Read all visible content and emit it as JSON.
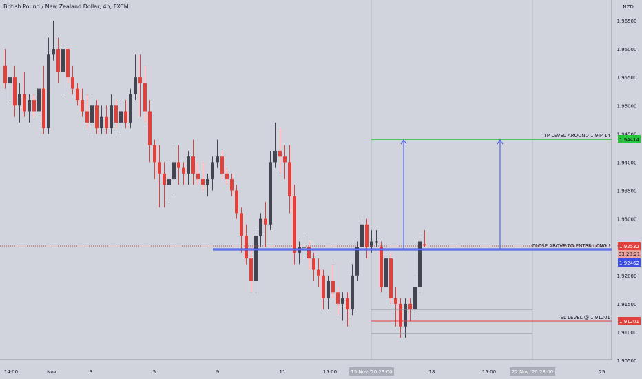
{
  "header": {
    "symbol_title": "British Pound / New Zealand Dollar, 4h, FXCM"
  },
  "price_axis": {
    "currency": "NZD",
    "labels": [
      "1.96500",
      "1.96000",
      "1.95500",
      "1.95000",
      "1.94500",
      "1.94000",
      "1.93500",
      "1.93000",
      "1.92500",
      "1.92000",
      "1.91500",
      "1.91000",
      "1.90500"
    ]
  },
  "time_axis": {
    "labels": [
      "14:00",
      "Nov",
      "3",
      "5",
      "9",
      "11",
      "15:00",
      "16",
      "18",
      "15:00",
      "23",
      "25"
    ],
    "crosshair_labels": [
      "15 Nov '20  23:00",
      "22 Nov '20  23:00"
    ]
  },
  "annotations": {
    "tp_label": "TP LEVEL AROUND 1.94414",
    "entry_label": "CLOSE ABOVE TO ENTER LONG !",
    "sl_label": "SL LEVEL @ 1.91201"
  },
  "price_tags": {
    "tp": "1.94414",
    "current": "1.92532",
    "countdown": "03:28:21",
    "entry": "1.92462",
    "sl": "1.91201"
  },
  "colors": {
    "background": "#d1d4dc",
    "up_candle": "#434651",
    "down_candle": "#e0413a",
    "tp_line": "#26c43a",
    "entry_line": "#3b4fe6",
    "sl_line": "#e0413a",
    "arrow": "#3b4fe6"
  },
  "chart_data": {
    "type": "candlestick",
    "interval": "4h",
    "y_range": [
      1.9045,
      1.9685
    ],
    "levels": {
      "tp": 1.94414,
      "entry": 1.92462,
      "sl": 1.91201,
      "current": 1.92532
    },
    "candles": [
      [
        1.957,
        1.96,
        1.953,
        1.954
      ],
      [
        1.954,
        1.956,
        1.951,
        1.955
      ],
      [
        1.955,
        1.957,
        1.948,
        1.95
      ],
      [
        1.95,
        1.954,
        1.947,
        1.952
      ],
      [
        1.952,
        1.956,
        1.948,
        1.949
      ],
      [
        1.949,
        1.952,
        1.947,
        1.951
      ],
      [
        1.951,
        1.952,
        1.948,
        1.949
      ],
      [
        1.949,
        1.956,
        1.947,
        1.953
      ],
      [
        1.953,
        1.957,
        1.945,
        1.946
      ],
      [
        1.946,
        1.962,
        1.945,
        1.959
      ],
      [
        1.959,
        1.965,
        1.958,
        1.96
      ],
      [
        1.96,
        1.962,
        1.954,
        1.956
      ],
      [
        1.956,
        1.96,
        1.952,
        1.96
      ],
      [
        1.96,
        1.96,
        1.954,
        1.955
      ],
      [
        1.955,
        1.957,
        1.952,
        1.953
      ],
      [
        1.953,
        1.954,
        1.95,
        1.951
      ],
      [
        1.951,
        1.953,
        1.948,
        1.949
      ],
      [
        1.949,
        1.952,
        1.946,
        1.947
      ],
      [
        1.947,
        1.952,
        1.945,
        1.95
      ],
      [
        1.95,
        1.951,
        1.945,
        1.946
      ],
      [
        1.946,
        1.95,
        1.945,
        1.948
      ],
      [
        1.948,
        1.95,
        1.945,
        1.946
      ],
      [
        1.946,
        1.952,
        1.945,
        1.95
      ],
      [
        1.95,
        1.951,
        1.946,
        1.947
      ],
      [
        1.947,
        1.951,
        1.945,
        1.949
      ],
      [
        1.949,
        1.951,
        1.946,
        1.947
      ],
      [
        1.947,
        1.953,
        1.946,
        1.952
      ],
      [
        1.952,
        1.959,
        1.951,
        1.955
      ],
      [
        1.955,
        1.959,
        1.948,
        1.954
      ],
      [
        1.954,
        1.957,
        1.947,
        1.949
      ],
      [
        1.949,
        1.951,
        1.94,
        1.943
      ],
      [
        1.943,
        1.944,
        1.937,
        1.94
      ],
      [
        1.94,
        1.943,
        1.932,
        1.938
      ],
      [
        1.938,
        1.94,
        1.932,
        1.936
      ],
      [
        1.936,
        1.94,
        1.933,
        1.937
      ],
      [
        1.937,
        1.943,
        1.934,
        1.94
      ],
      [
        1.94,
        1.943,
        1.936,
        1.939
      ],
      [
        1.939,
        1.94,
        1.936,
        1.938
      ],
      [
        1.938,
        1.942,
        1.936,
        1.941
      ],
      [
        1.941,
        1.944,
        1.936,
        1.938
      ],
      [
        1.938,
        1.94,
        1.936,
        1.937
      ],
      [
        1.937,
        1.94,
        1.935,
        1.936
      ],
      [
        1.936,
        1.938,
        1.934,
        1.937
      ],
      [
        1.937,
        1.941,
        1.935,
        1.94
      ],
      [
        1.94,
        1.944,
        1.939,
        1.941
      ],
      [
        1.941,
        1.942,
        1.937,
        1.938
      ],
      [
        1.938,
        1.939,
        1.936,
        1.937
      ],
      [
        1.937,
        1.938,
        1.934,
        1.935
      ],
      [
        1.935,
        1.936,
        1.93,
        1.931
      ],
      [
        1.931,
        1.932,
        1.924,
        1.927
      ],
      [
        1.927,
        1.929,
        1.922,
        1.923
      ],
      [
        1.923,
        1.925,
        1.917,
        1.919
      ],
      [
        1.919,
        1.928,
        1.917,
        1.927
      ],
      [
        1.927,
        1.931,
        1.925,
        1.93
      ],
      [
        1.93,
        1.933,
        1.925,
        1.929
      ],
      [
        1.929,
        1.942,
        1.928,
        1.94
      ],
      [
        1.94,
        1.947,
        1.939,
        1.942
      ],
      [
        1.942,
        1.946,
        1.938,
        1.941
      ],
      [
        1.941,
        1.943,
        1.937,
        1.94
      ],
      [
        1.94,
        1.943,
        1.931,
        1.934
      ],
      [
        1.934,
        1.936,
        1.922,
        1.924
      ],
      [
        1.924,
        1.926,
        1.922,
        1.925
      ],
      [
        1.925,
        1.927,
        1.923,
        1.925
      ],
      [
        1.925,
        1.926,
        1.921,
        1.923
      ],
      [
        1.923,
        1.924,
        1.919,
        1.921
      ],
      [
        1.921,
        1.923,
        1.918,
        1.92
      ],
      [
        1.92,
        1.921,
        1.914,
        1.916
      ],
      [
        1.916,
        1.92,
        1.914,
        1.919
      ],
      [
        1.919,
        1.922,
        1.916,
        1.917
      ],
      [
        1.917,
        1.918,
        1.913,
        1.915
      ],
      [
        1.915,
        1.917,
        1.912,
        1.916
      ],
      [
        1.916,
        1.917,
        1.911,
        1.914
      ],
      [
        1.914,
        1.922,
        1.913,
        1.92
      ],
      [
        1.92,
        1.926,
        1.919,
        1.925
      ],
      [
        1.925,
        1.93,
        1.924,
        1.929
      ],
      [
        1.929,
        1.93,
        1.923,
        1.925
      ],
      [
        1.925,
        1.928,
        1.924,
        1.926
      ],
      [
        1.926,
        1.928,
        1.925,
        1.926
      ],
      [
        1.925,
        1.926,
        1.917,
        1.918
      ],
      [
        1.918,
        1.924,
        1.917,
        1.923
      ],
      [
        1.923,
        1.924,
        1.915,
        1.916
      ],
      [
        1.916,
        1.918,
        1.911,
        1.915
      ],
      [
        1.915,
        1.916,
        1.909,
        1.911
      ],
      [
        1.911,
        1.916,
        1.909,
        1.915
      ],
      [
        1.915,
        1.916,
        1.912,
        1.914
      ],
      [
        1.914,
        1.92,
        1.913,
        1.918
      ],
      [
        1.918,
        1.927,
        1.917,
        1.926
      ],
      [
        1.9255,
        1.928,
        1.925,
        1.9253
      ]
    ]
  }
}
